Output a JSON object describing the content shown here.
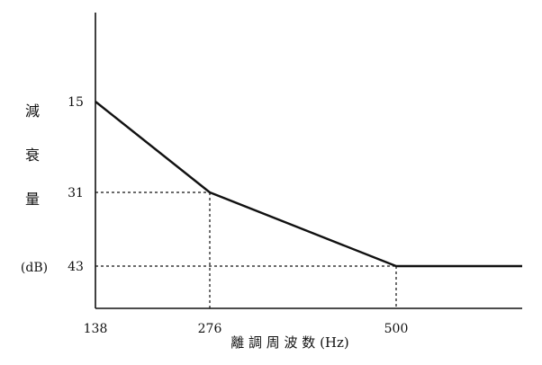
{
  "chart_data": {
    "type": "line",
    "ylabel": "減衰量",
    "ylabel_unit": "(dB)",
    "xlabel": "離 調 周 波 数 (Hz)",
    "x_ticks": [
      "138",
      "276",
      "500"
    ],
    "y_ticks": [
      "15",
      "31",
      "43"
    ],
    "y_inverted": true,
    "series": [
      {
        "points": [
          {
            "x": 138,
            "y": 15
          },
          {
            "x": 276,
            "y": 31
          },
          {
            "x": 500,
            "y": 43
          },
          {
            "x": 630,
            "y": 43
          }
        ]
      }
    ],
    "guides": [
      {
        "x": 276,
        "y": 31
      },
      {
        "x": 500,
        "y": 43
      }
    ],
    "grid": false
  }
}
